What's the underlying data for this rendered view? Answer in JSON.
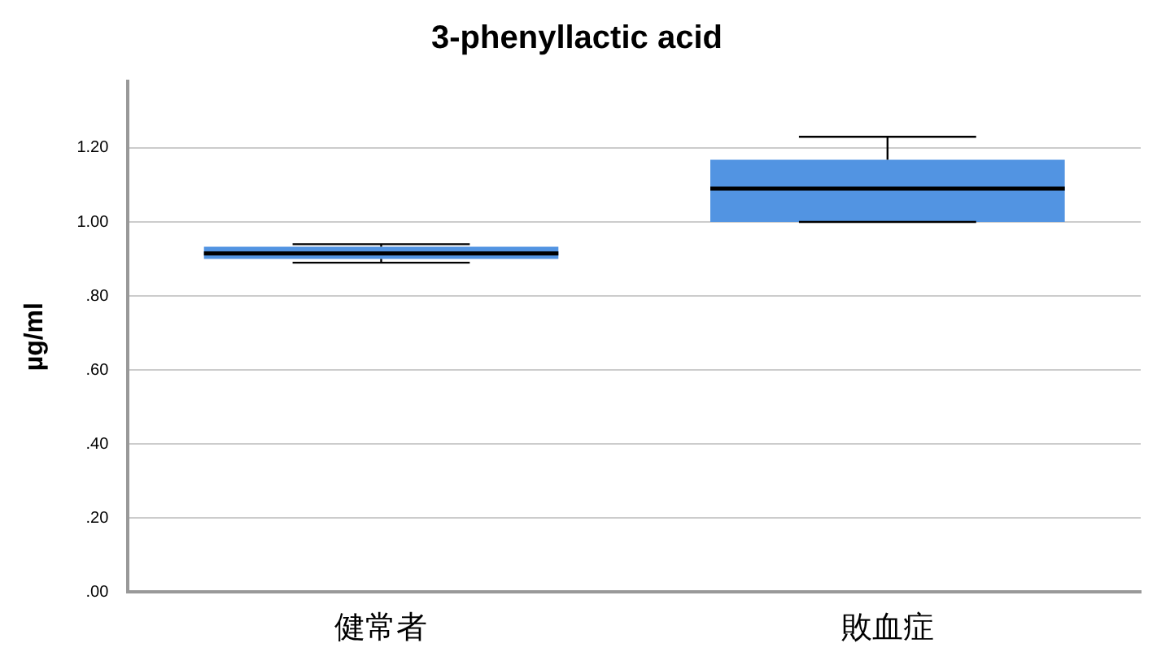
{
  "chart_data": {
    "type": "box",
    "title": "3-phenyllactic acid",
    "ylabel": "µg/ml",
    "categories": [
      "健常者",
      "敗血症"
    ],
    "boxes": [
      {
        "low": 0.89,
        "q1": 0.9,
        "median": 0.915,
        "q3": 0.933,
        "high": 0.94
      },
      {
        "low": 1.0,
        "q1": 1.0,
        "median": 1.09,
        "q3": 1.168,
        "high": 1.23
      }
    ],
    "color": "#5294e2",
    "ylim": [
      0,
      1.38
    ],
    "yticks": [
      {
        "value": 0,
        "label": ".00"
      },
      {
        "value": 0.2,
        "label": ".20"
      },
      {
        "value": 0.4,
        "label": ".40"
      },
      {
        "value": 0.6,
        "label": ".60"
      },
      {
        "value": 0.8,
        "label": ".80"
      },
      {
        "value": 1,
        "label": "1.00"
      },
      {
        "value": 1.2,
        "label": "1.20"
      }
    ],
    "grid": "y"
  }
}
